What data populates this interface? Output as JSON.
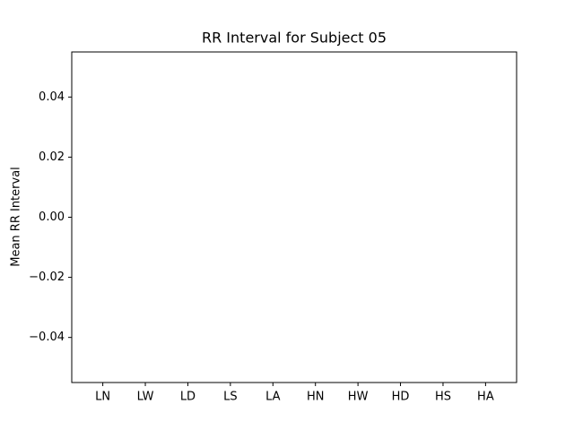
{
  "chart_data": {
    "type": "bar",
    "title": "RR Interval for Subject 05",
    "ylabel": "Mean RR Interval",
    "categories": [
      "LN",
      "LW",
      "LD",
      "LS",
      "LA",
      "HN",
      "HW",
      "HD",
      "HS",
      "HA"
    ],
    "values": [
      0,
      0,
      0,
      0,
      0,
      0,
      0,
      0,
      0,
      0
    ],
    "color": "#1f77b4",
    "ylim": [
      -0.055,
      0.055
    ],
    "yticks": [
      {
        "value": -0.04,
        "label": "−0.04"
      },
      {
        "value": -0.02,
        "label": "−0.02"
      },
      {
        "value": 0,
        "label": "0.00"
      },
      0.02,
      0.04
    ],
    "grid": false
  }
}
